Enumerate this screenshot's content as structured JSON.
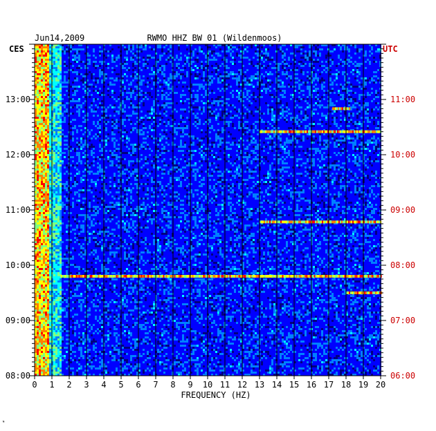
{
  "chart_data": {
    "type": "heatmap",
    "title": "RWMO HHZ BW 01 (Wildenmoos)",
    "date": "Jun14,2009",
    "xlabel": "FREQUENCY (HZ)",
    "xlim": [
      0,
      20
    ],
    "x_ticks": [
      "0",
      "1",
      "2",
      "3",
      "4",
      "5",
      "6",
      "7",
      "8",
      "9",
      "10",
      "11",
      "12",
      "13",
      "14",
      "15",
      "16",
      "17",
      "18",
      "19",
      "20"
    ],
    "left_axis": {
      "label": "CES",
      "ticks": [
        "13:00",
        "12:00",
        "11:00",
        "10:00",
        "09:00",
        "08:00"
      ],
      "tick_hours": [
        13,
        12,
        11,
        10,
        9,
        8
      ],
      "range_hours": [
        8.0,
        14.0
      ]
    },
    "right_axis": {
      "label": "UTC",
      "ticks": [
        "11:00",
        "10:00",
        "09:00",
        "08:00",
        "07:00",
        "06:00"
      ],
      "tick_hours": [
        11,
        10,
        9,
        8,
        7,
        6
      ]
    },
    "grid": true,
    "colormap": [
      "#00007f",
      "#0000ff",
      "#0080ff",
      "#00ffff",
      "#80ff80",
      "#ffff00",
      "#ff8000",
      "#ff0000"
    ],
    "notable_features": [
      {
        "description": "broadband line",
        "time_ces": "09:48",
        "freq_range_hz": [
          1.5,
          20
        ]
      },
      {
        "description": "high-frequency band",
        "time_ces": "10:47",
        "freq_range_hz": [
          13,
          20
        ]
      },
      {
        "description": "high-frequency band",
        "time_ces": "12:25",
        "freq_range_hz": [
          13,
          20
        ]
      },
      {
        "description": "high-frequency band",
        "time_ces": "12:50",
        "freq_range_hz": [
          17.2,
          18.2
        ]
      },
      {
        "description": "high-frequency band",
        "time_ces": "09:30",
        "freq_range_hz": [
          18,
          20
        ]
      }
    ]
  },
  "colors": {
    "axis_right_label": "#cc0000",
    "axis_left_label": "#000000",
    "background": "#000080"
  }
}
